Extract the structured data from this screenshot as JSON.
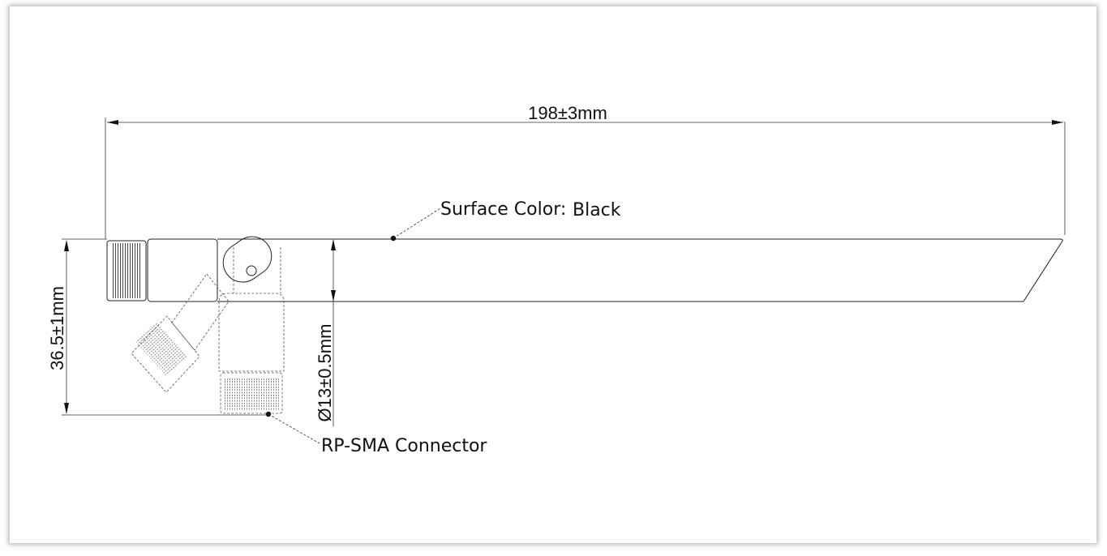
{
  "dimensions": {
    "length": "198±3mm",
    "height": "36.5±1mm",
    "diameter": "Ø13±0.5mm"
  },
  "callouts": {
    "surface_label": "Surface Color:",
    "surface_value": "Black",
    "connector": "RP-SMA Connector"
  }
}
